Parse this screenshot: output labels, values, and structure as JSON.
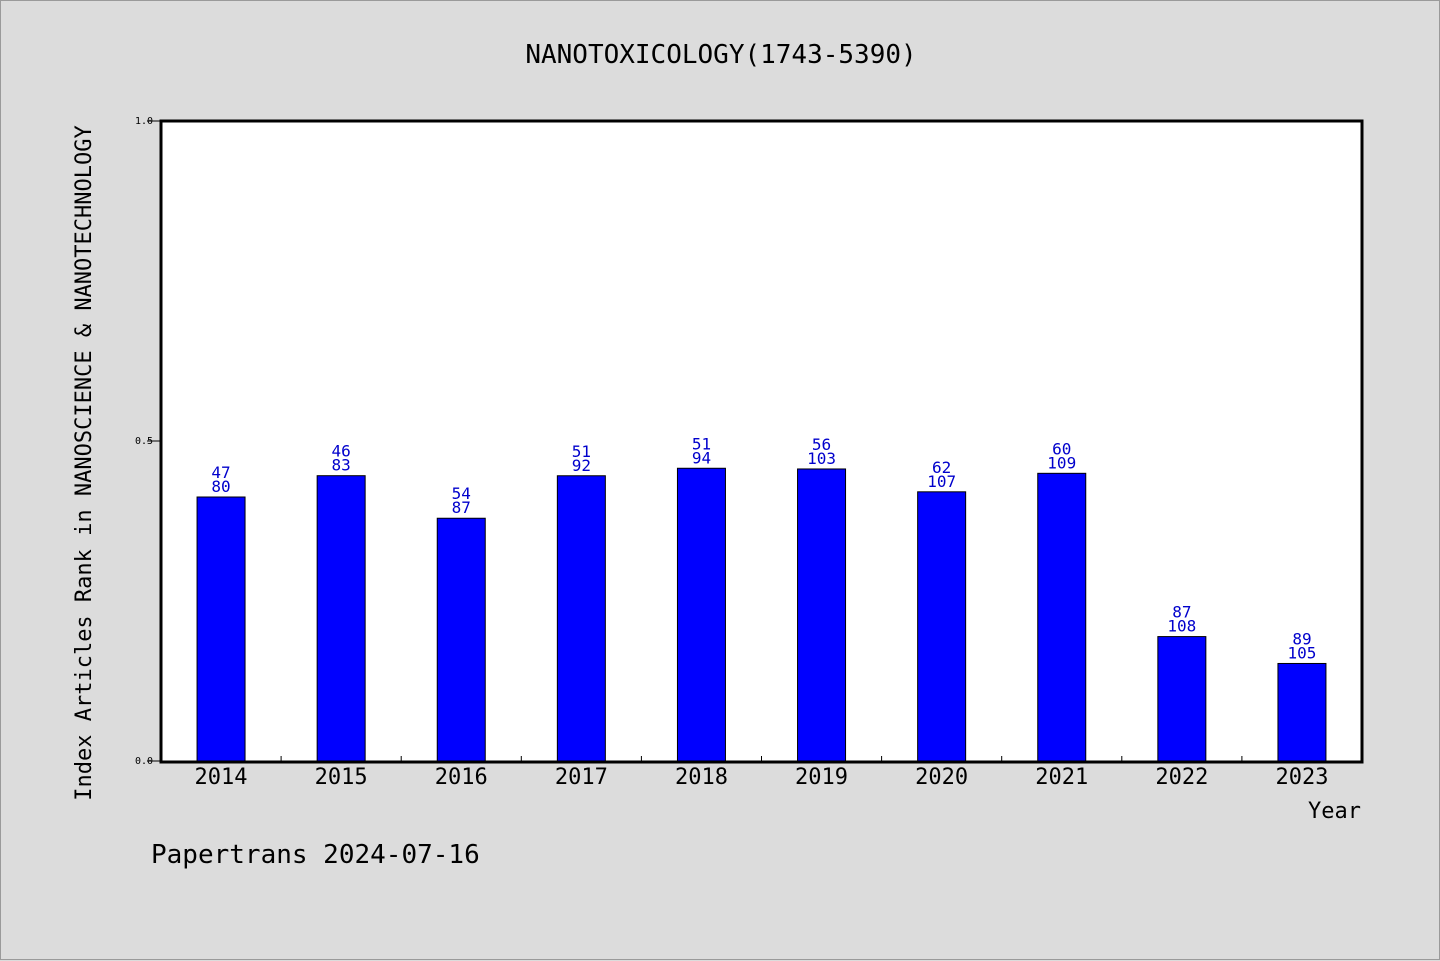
{
  "chart_data": {
    "type": "bar",
    "title": "NANOTOXICOLOGY(1743-5390)",
    "xlabel": "Year",
    "ylabel": "Index Articles Rank in NANOSCIENCE & NANOTECHNOLOGY",
    "ylim": [
      0,
      1.0
    ],
    "yticks": [
      "0.0",
      "0.5",
      "1.0"
    ],
    "categories": [
      "2014",
      "2015",
      "2016",
      "2017",
      "2018",
      "2019",
      "2020",
      "2021",
      "2022",
      "2023"
    ],
    "values": [
      0.4125,
      0.4458,
      0.3793,
      0.4457,
      0.4574,
      0.4563,
      0.4206,
      0.4495,
      0.1944,
      0.1524
    ],
    "label_top": [
      "47",
      "46",
      "54",
      "51",
      "51",
      "56",
      "62",
      "60",
      "87",
      "89"
    ],
    "label_bottom": [
      "80",
      "83",
      "87",
      "92",
      "94",
      "103",
      "107",
      "109",
      "108",
      "105"
    ],
    "bar_color": "#0000ff",
    "label_color": "#0000cc",
    "grid": false,
    "legend": "none"
  },
  "footer": "Papertrans 2024-07-16"
}
